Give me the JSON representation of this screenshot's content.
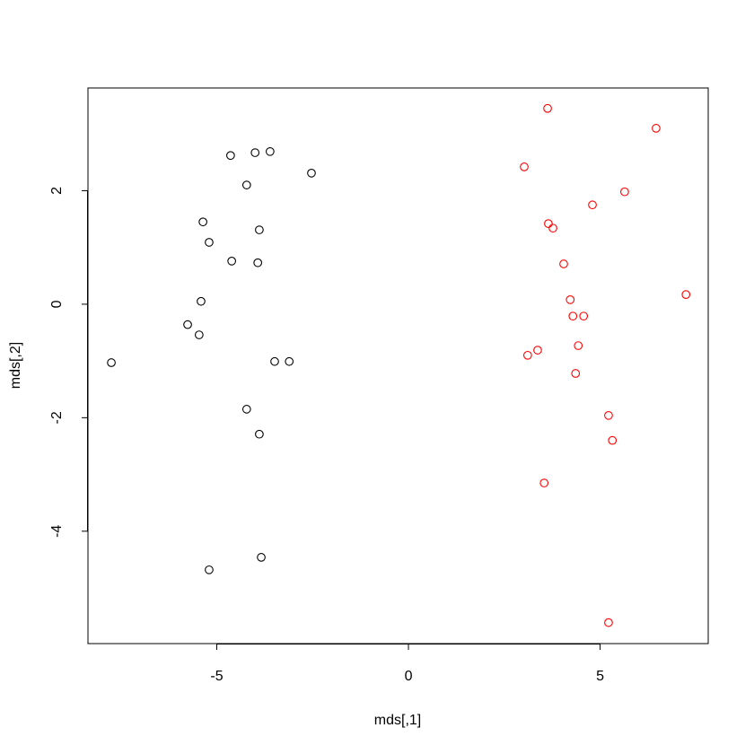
{
  "chart_data": {
    "type": "scatter",
    "xlabel": "mds[,1]",
    "ylabel": "mds[,2]",
    "xlim": [
      -8.36,
      7.82
    ],
    "ylim": [
      -5.98,
      3.81
    ],
    "xticks": [
      -5,
      0,
      5
    ],
    "yticks": [
      -4,
      -2,
      0,
      2
    ],
    "series": [
      {
        "color": "#000000",
        "x": [
          -4.64,
          -4.0,
          -3.61,
          -2.53,
          -4.22,
          -5.36,
          -3.89,
          -5.2,
          -4.61,
          -3.93,
          -5.41,
          -5.76,
          -5.46,
          -7.75,
          -3.49,
          -3.11,
          -4.22,
          -3.89,
          -3.84,
          -5.2
        ],
        "y": [
          2.62,
          2.67,
          2.69,
          2.31,
          2.1,
          1.45,
          1.31,
          1.09,
          0.76,
          0.73,
          0.05,
          -0.36,
          -0.54,
          -1.03,
          -1.01,
          -1.01,
          -1.85,
          -2.29,
          -4.46,
          -4.68
        ]
      },
      {
        "color": "#ff0000",
        "x": [
          3.63,
          6.46,
          3.02,
          5.64,
          4.8,
          3.65,
          3.77,
          4.05,
          7.24,
          4.22,
          4.29,
          4.57,
          3.37,
          3.11,
          4.43,
          4.36,
          5.22,
          5.32,
          3.54,
          5.22
        ],
        "y": [
          3.45,
          3.1,
          2.42,
          1.98,
          1.75,
          1.42,
          1.34,
          0.71,
          0.17,
          0.08,
          -0.21,
          -0.21,
          -0.81,
          -0.9,
          -0.73,
          -1.22,
          -1.96,
          -2.4,
          -3.15,
          -5.61
        ]
      }
    ]
  }
}
